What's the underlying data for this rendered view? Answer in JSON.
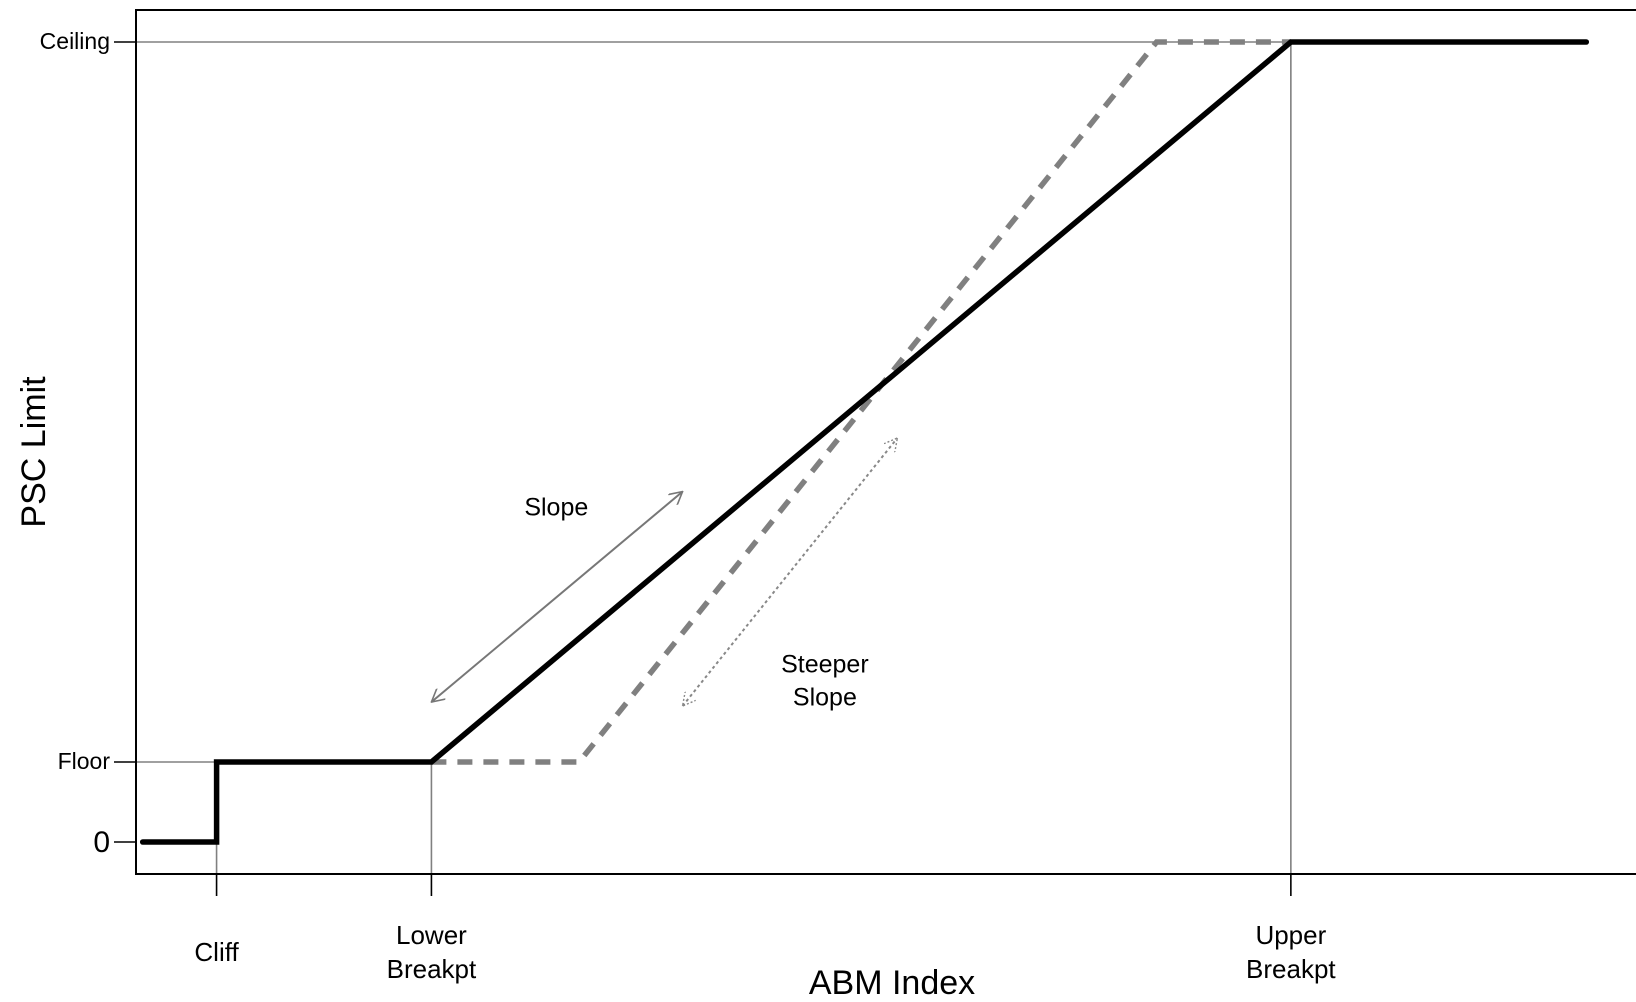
{
  "chart_data": {
    "type": "line",
    "title": "",
    "xlabel": "ABM Index",
    "ylabel": "PSC Limit",
    "xlim": [
      -0.06,
      1.06
    ],
    "ylim": [
      -0.04,
      1.04
    ],
    "grid": false,
    "legend": "none",
    "colors": {
      "main": "#000000",
      "alternative": "#808080",
      "reference": "#808080"
    },
    "x_ticks": [
      {
        "value": 0.0,
        "label": "Cliff"
      },
      {
        "value": 0.16,
        "label": "Lower\nBreakpt"
      },
      {
        "value": 0.8,
        "label": "Upper\nBreakpt"
      }
    ],
    "y_ticks": [
      {
        "value": 0.0,
        "label": "0"
      },
      {
        "value": 0.1,
        "label": "Floor"
      },
      {
        "value": 1.0,
        "label": "Ceiling"
      }
    ],
    "series": [
      {
        "style": "solid",
        "x": [
          -0.055,
          0.0,
          0.0,
          0.16,
          0.8,
          1.02
        ],
        "y": [
          0,
          0,
          0.1,
          0.1,
          1.0,
          1.0
        ]
      },
      {
        "style": "dashed",
        "x": [
          0.16,
          0.27,
          0.7,
          0.8
        ],
        "y": [
          0.1,
          0.1,
          1.0,
          1.0
        ]
      }
    ],
    "reference_lines": [
      {
        "orientation": "vertical",
        "x": 0.0,
        "y_to": 0.1
      },
      {
        "orientation": "vertical",
        "x": 0.16,
        "y_to": 0.1
      },
      {
        "orientation": "vertical",
        "x": 0.8,
        "y_to": 1.0
      },
      {
        "orientation": "horizontal",
        "y": 0.1,
        "x_to": 0.0
      },
      {
        "orientation": "horizontal",
        "y": 1.0,
        "x_to": 0.8
      }
    ],
    "annotations": [
      {
        "text": "Slope",
        "at": [
          0.253,
          0.408
        ],
        "arrow": {
          "style": "solid",
          "from": [
            0.16,
            0.175
          ],
          "to": [
            0.347,
            0.438
          ]
        }
      },
      {
        "text": "Steeper\nSlope",
        "at": [
          0.453,
          0.212
        ],
        "arrow": {
          "style": "dotted",
          "from": [
            0.347,
            0.17
          ],
          "to": [
            0.507,
            0.505
          ]
        }
      }
    ]
  }
}
